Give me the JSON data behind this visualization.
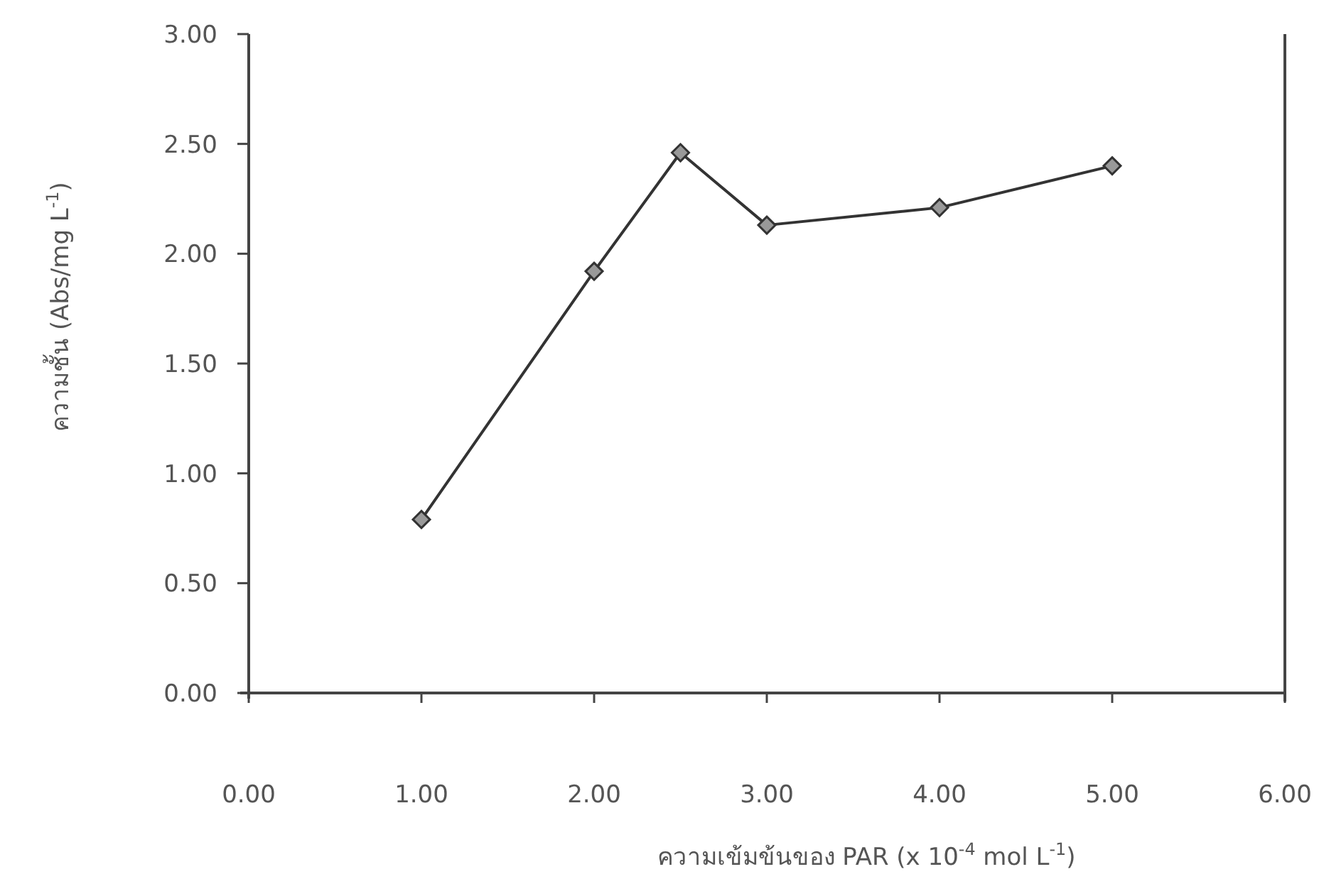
{
  "chart_data": {
    "type": "line",
    "xlabel": "ความเข้มข้นของ PAR (x 10$^{-4}$ mol L$^{-1}$)",
    "ylabel": "ความชั้น (Abs/mg L$^{-1}$)",
    "x": [
      1.0,
      2.0,
      2.5,
      3.0,
      4.0,
      5.0
    ],
    "values": [
      0.79,
      1.92,
      2.46,
      2.13,
      2.21,
      2.4
    ],
    "color": "#333333",
    "marker": "diamond",
    "line_style": "solid",
    "xlim": [
      0,
      6
    ],
    "ylim": [
      0,
      3
    ],
    "xticks": [
      {
        "value": 0,
        "label": "0.00"
      },
      {
        "value": 1,
        "label": "1.00"
      },
      {
        "value": 2,
        "label": "2.00"
      },
      {
        "value": 3,
        "label": "3.00"
      },
      {
        "value": 4,
        "label": "4.00"
      },
      {
        "value": 5,
        "label": "5.00"
      },
      {
        "value": 6,
        "label": "6.00"
      }
    ],
    "yticks": [
      {
        "value": 0,
        "label": "0.00"
      },
      {
        "value": 0.5,
        "label": "0.50"
      },
      {
        "value": 1,
        "label": "1.00"
      },
      {
        "value": 1.5,
        "label": "1.50"
      },
      {
        "value": 2,
        "label": "2.00"
      },
      {
        "value": 2.5,
        "label": "2.50"
      },
      {
        "value": 3,
        "label": "3.00"
      }
    ],
    "grid": false
  }
}
